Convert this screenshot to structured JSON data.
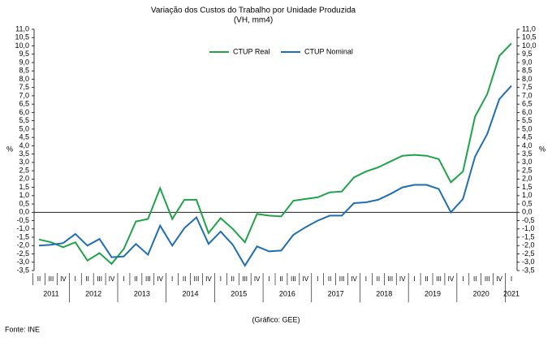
{
  "chart_data": {
    "type": "line",
    "title": "Variação dos Custos do Trabalho por Unidade Produzida",
    "subtitle": "(VH, mm4)",
    "y_label": "%",
    "y2_label": "%",
    "source": "Fonte: INE",
    "note": "(Gráfico: GEE)",
    "categories": [
      "II",
      "III",
      "IV",
      "I",
      "II",
      "III",
      "IV",
      "I",
      "II",
      "III",
      "IV",
      "I",
      "II",
      "III",
      "IV",
      "I",
      "II",
      "III",
      "IV",
      "I",
      "II",
      "III",
      "IV",
      "I",
      "II",
      "III",
      "IV",
      "I",
      "II",
      "III",
      "IV",
      "I",
      "II",
      "III",
      "IV",
      "I",
      "II",
      "III",
      "IV",
      "I"
    ],
    "years": [
      "2011",
      "2012",
      "2013",
      "2014",
      "2015",
      "2016",
      "2017",
      "2018",
      "2019",
      "2020",
      "2021"
    ],
    "series": [
      {
        "name": "CTUP Real",
        "color": "#1fa34a",
        "values": [
          -1.63,
          -1.8,
          -2.1,
          -1.8,
          -2.9,
          -2.45,
          -3.1,
          -2.2,
          -0.55,
          -0.4,
          1.45,
          -0.4,
          0.75,
          0.75,
          -1.25,
          -0.35,
          -1.0,
          -1.8,
          -0.1,
          -0.2,
          -0.25,
          0.7,
          0.8,
          0.9,
          1.2,
          1.25,
          2.1,
          2.45,
          2.7,
          3.05,
          3.4,
          3.45,
          3.4,
          3.2,
          1.8,
          2.45,
          5.75,
          7.1,
          9.4,
          10.15
        ]
      },
      {
        "name": "CTUP Nominal",
        "color": "#1f6fb0",
        "values": [
          -2.0,
          -1.95,
          -1.85,
          -1.3,
          -2.0,
          -1.6,
          -2.7,
          -2.65,
          -1.9,
          -2.55,
          -0.8,
          -2.0,
          -0.95,
          -0.3,
          -1.9,
          -1.15,
          -1.95,
          -3.2,
          -2.05,
          -2.35,
          -2.3,
          -1.35,
          -0.9,
          -0.5,
          -0.2,
          -0.2,
          0.55,
          0.6,
          0.75,
          1.1,
          1.5,
          1.65,
          1.65,
          1.4,
          0.0,
          0.8,
          3.35,
          4.7,
          6.8,
          7.6
        ]
      }
    ],
    "ylim": [
      -3.5,
      11.0
    ],
    "yticks": [
      {
        "value": -3.5,
        "label": "-3,5"
      },
      {
        "value": -3,
        "label": "-3,0"
      },
      {
        "value": -2.5,
        "label": "-2,5"
      },
      {
        "value": -2,
        "label": "-2,0"
      },
      {
        "value": -1.5,
        "label": "-1,5"
      },
      {
        "value": -1,
        "label": "-1,0"
      },
      {
        "value": -0.5,
        "label": "-0,5"
      },
      {
        "value": 0,
        "label": "0,0"
      },
      {
        "value": 0.5,
        "label": "0,5"
      },
      {
        "value": 1,
        "label": "1,0"
      },
      {
        "value": 1.5,
        "label": "1,5"
      },
      {
        "value": 2,
        "label": "2,0"
      },
      {
        "value": 2.5,
        "label": "2,5"
      },
      {
        "value": 3,
        "label": "3,0"
      },
      {
        "value": 3.5,
        "label": "3,5"
      },
      {
        "value": 4,
        "label": "4,0"
      },
      {
        "value": 4.5,
        "label": "4,5"
      },
      {
        "value": 5,
        "label": "5,0"
      },
      {
        "value": 5.5,
        "label": "5,5"
      },
      {
        "value": 6,
        "label": "6,0"
      },
      {
        "value": 6.5,
        "label": "6,5"
      },
      {
        "value": 7,
        "label": "7,0"
      },
      {
        "value": 7.5,
        "label": "7,5"
      },
      {
        "value": 8,
        "label": "8,0"
      },
      {
        "value": 8.5,
        "label": "8,5"
      },
      {
        "value": 9,
        "label": "9,0"
      },
      {
        "value": 9.5,
        "label": "9,5"
      },
      {
        "value": 10,
        "label": "10,0"
      },
      {
        "value": 10.5,
        "label": "10,5"
      },
      {
        "value": 11,
        "label": "11,0"
      }
    ],
    "y2lim": [
      -3.5,
      11.0
    ],
    "y2ticks": [
      {
        "value": -3.5,
        "label": "-3,5"
      },
      {
        "value": -3,
        "label": "-3,0"
      },
      {
        "value": -2.5,
        "label": "-2,5"
      },
      {
        "value": -2,
        "label": "-2,0"
      },
      {
        "value": -1.5,
        "label": "-1,5"
      },
      {
        "value": -1,
        "label": "-1,0"
      },
      {
        "value": -0.5,
        "label": "-0,5"
      },
      {
        "value": 0,
        "label": "0,0"
      },
      {
        "value": 0.5,
        "label": "0,5"
      },
      {
        "value": 1,
        "label": "1,0"
      },
      {
        "value": 1.5,
        "label": "1,5"
      },
      {
        "value": 2,
        "label": "2,0"
      },
      {
        "value": 2.5,
        "label": "2,5"
      },
      {
        "value": 3,
        "label": "3,0"
      },
      {
        "value": 3.5,
        "label": "3,5"
      },
      {
        "value": 4,
        "label": "4,0"
      },
      {
        "value": 4.5,
        "label": "4,5"
      },
      {
        "value": 5,
        "label": "5,0"
      },
      {
        "value": 5.5,
        "label": "5,5"
      },
      {
        "value": 6,
        "label": "6,0"
      },
      {
        "value": 6.5,
        "label": "6,5"
      },
      {
        "value": 7,
        "label": "7,0"
      },
      {
        "value": 7.5,
        "label": "7,5"
      },
      {
        "value": 8,
        "label": "8,0"
      },
      {
        "value": 8.5,
        "label": "8,5"
      },
      {
        "value": 9,
        "label": "9,0"
      },
      {
        "value": 9.5,
        "label": "9,5"
      },
      {
        "value": 10,
        "label": "10,0"
      },
      {
        "value": 10.5,
        "label": "10,5"
      },
      {
        "value": 11,
        "label": "11,0"
      }
    ],
    "legend": "top"
  }
}
